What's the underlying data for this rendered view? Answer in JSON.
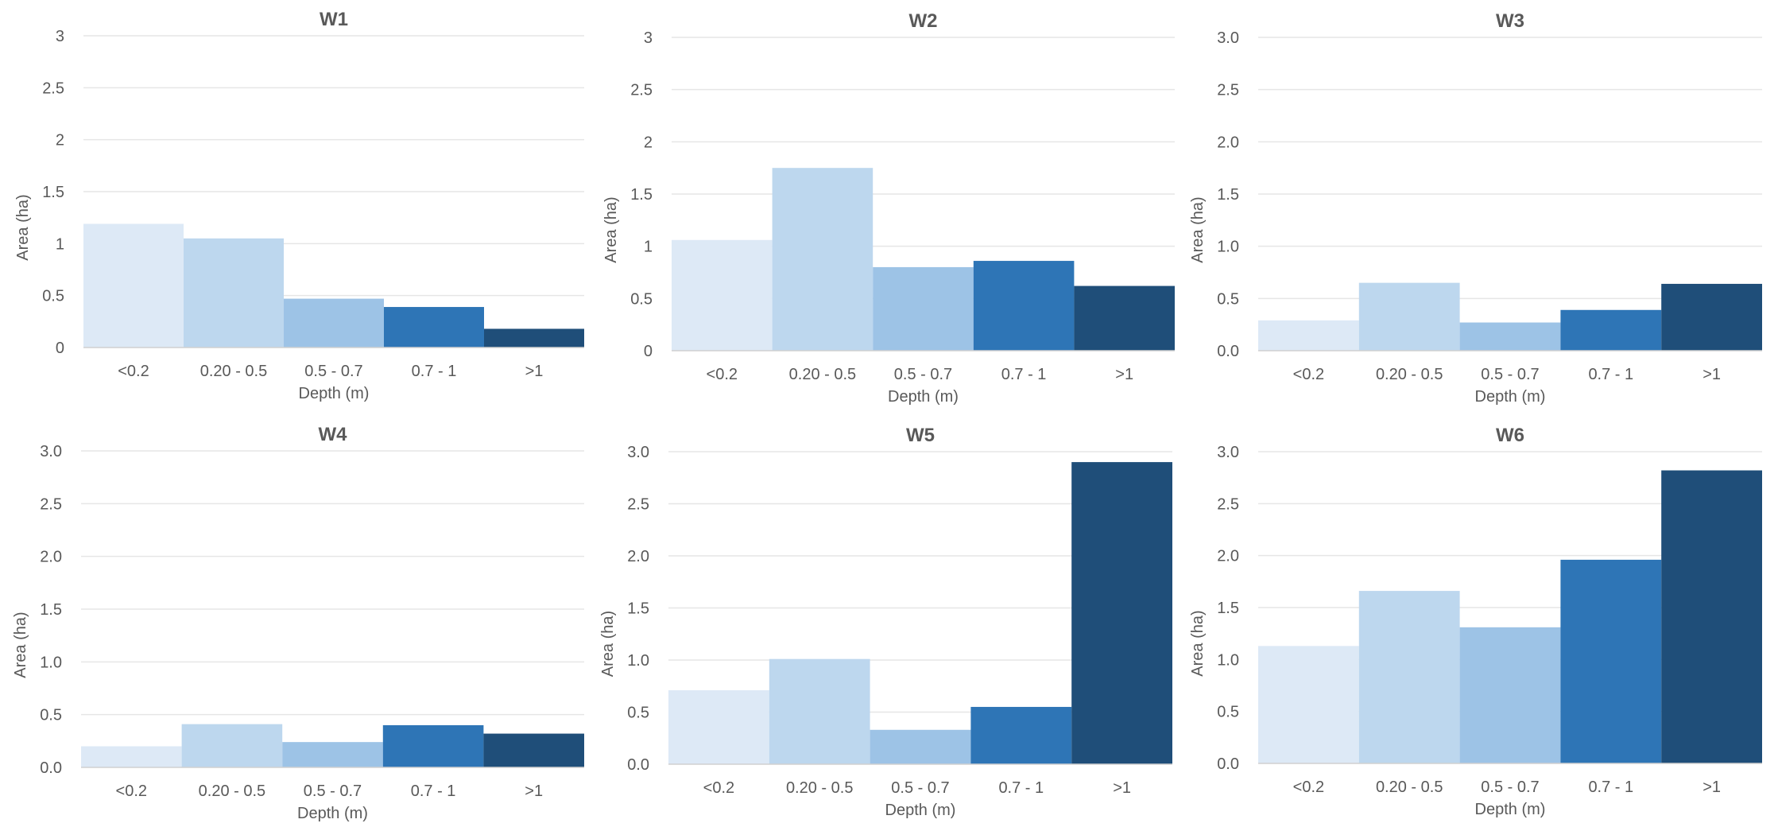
{
  "chart_data": [
    {
      "type": "bar",
      "title": "W1",
      "categories": [
        "<0.2",
        "0.20 - 0.5",
        "0.5 - 0.7",
        "0.7 - 1",
        ">1"
      ],
      "values": [
        1.19,
        1.05,
        0.47,
        0.39,
        0.18
      ],
      "colors": [
        "#dde9f6",
        "#bdd7ee",
        "#9dc3e6",
        "#2e75b6",
        "#1f4e79"
      ],
      "xlabel": "Depth (m)",
      "ylabel": "Area (ha)",
      "ylim": [
        0,
        3
      ],
      "yticks": [
        "0",
        "0.5",
        "1",
        "1.5",
        "2",
        "2.5",
        "3"
      ],
      "grid": true
    },
    {
      "type": "bar",
      "title": "W2",
      "categories": [
        "<0.2",
        "0.20 - 0.5",
        "0.5 - 0.7",
        "0.7 - 1",
        ">1"
      ],
      "values": [
        1.06,
        1.75,
        0.8,
        0.86,
        0.62
      ],
      "colors": [
        "#dde9f6",
        "#bdd7ee",
        "#9dc3e6",
        "#2e75b6",
        "#1f4e79"
      ],
      "xlabel": "Depth (m)",
      "ylabel": "Area (ha)",
      "ylim": [
        0,
        3
      ],
      "yticks": [
        "0",
        "0.5",
        "1",
        "1.5",
        "2",
        "2.5",
        "3"
      ],
      "grid": true
    },
    {
      "type": "bar",
      "title": "W3",
      "categories": [
        "<0.2",
        "0.20 - 0.5",
        "0.5 - 0.7",
        "0.7 - 1",
        ">1"
      ],
      "values": [
        0.29,
        0.65,
        0.27,
        0.39,
        0.64
      ],
      "colors": [
        "#dde9f6",
        "#bdd7ee",
        "#9dc3e6",
        "#2e75b6",
        "#1f4e79"
      ],
      "xlabel": "Depth (m)",
      "ylabel": "Area (ha)",
      "ylim": [
        0,
        3
      ],
      "yticks": [
        "0.0",
        "0.5",
        "1.0",
        "1.5",
        "2.0",
        "2.5",
        "3.0"
      ],
      "grid": true
    },
    {
      "type": "bar",
      "title": "W4",
      "categories": [
        "<0.2",
        "0.20 - 0.5",
        "0.5 - 0.7",
        "0.7 - 1",
        ">1"
      ],
      "values": [
        0.2,
        0.41,
        0.24,
        0.4,
        0.32
      ],
      "colors": [
        "#dde9f6",
        "#bdd7ee",
        "#9dc3e6",
        "#2e75b6",
        "#1f4e79"
      ],
      "xlabel": "Depth (m)",
      "ylabel": "Area (ha)",
      "ylim": [
        0,
        3
      ],
      "yticks": [
        "0.0",
        "0.5",
        "1.0",
        "1.5",
        "2.0",
        "2.5",
        "3.0"
      ],
      "grid": true
    },
    {
      "type": "bar",
      "title": "W5",
      "categories": [
        "<0.2",
        "0.20 - 0.5",
        "0.5 - 0.7",
        "0.7 - 1",
        ">1"
      ],
      "values": [
        0.71,
        1.01,
        0.33,
        0.55,
        2.9
      ],
      "colors": [
        "#dde9f6",
        "#bdd7ee",
        "#9dc3e6",
        "#2e75b6",
        "#1f4e79"
      ],
      "xlabel": "Depth (m)",
      "ylabel": "Area (ha)",
      "ylim": [
        0,
        3
      ],
      "yticks": [
        "0.0",
        "0.5",
        "1.0",
        "1.5",
        "2.0",
        "2.5",
        "3.0"
      ],
      "grid": true
    },
    {
      "type": "bar",
      "title": "W6",
      "categories": [
        "<0.2",
        "0.20 - 0.5",
        "0.5 - 0.7",
        "0.7 - 1",
        ">1"
      ],
      "values": [
        1.13,
        1.66,
        1.31,
        1.96,
        2.82
      ],
      "colors": [
        "#dde9f6",
        "#bdd7ee",
        "#9dc3e6",
        "#2e75b6",
        "#1f4e79"
      ],
      "xlabel": "Depth (m)",
      "ylabel": "Area (ha)",
      "ylim": [
        0,
        3
      ],
      "yticks": [
        "0.0",
        "0.5",
        "1.0",
        "1.5",
        "2.0",
        "2.5",
        "3.0"
      ],
      "grid": true
    }
  ]
}
